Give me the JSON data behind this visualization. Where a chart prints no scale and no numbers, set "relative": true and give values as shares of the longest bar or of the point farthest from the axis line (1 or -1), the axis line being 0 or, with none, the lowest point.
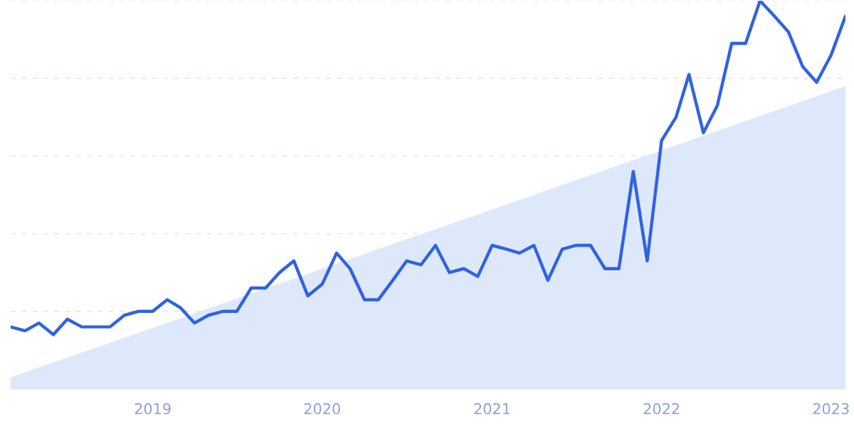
{
  "chart_data": {
    "type": "line",
    "relative": true,
    "grid": "y",
    "tick_labels": "x",
    "x": [
      "2018-03",
      "2018-04",
      "2018-05",
      "2018-06",
      "2018-07",
      "2018-08",
      "2018-09",
      "2018-10",
      "2018-11",
      "2018-12",
      "2019-01",
      "2019-02",
      "2019-03",
      "2019-04",
      "2019-05",
      "2019-06",
      "2019-07",
      "2019-08",
      "2019-09",
      "2019-10",
      "2019-11",
      "2019-12",
      "2020-01",
      "2020-02",
      "2020-03",
      "2020-04",
      "2020-05",
      "2020-06",
      "2020-07",
      "2020-08",
      "2020-09",
      "2020-10",
      "2020-11",
      "2020-12",
      "2021-01",
      "2021-02",
      "2021-03",
      "2021-04",
      "2021-05",
      "2021-06",
      "2021-07",
      "2021-08",
      "2021-09",
      "2021-10",
      "2021-11",
      "2021-12",
      "2022-01",
      "2022-02",
      "2022-03",
      "2022-04",
      "2022-05",
      "2022-06",
      "2022-07",
      "2022-08",
      "2022-09",
      "2022-10",
      "2022-11",
      "2022-12",
      "2023-01",
      "2023-02"
    ],
    "xlim": [
      "2018-03",
      "2023-02"
    ],
    "xticks": [
      {
        "value": "2019-01",
        "label": "2019"
      },
      {
        "value": "2020-01",
        "label": "2020"
      },
      {
        "value": "2021-01",
        "label": "2021"
      },
      {
        "value": "2022-01",
        "label": "2022"
      },
      {
        "value": "2023-01",
        "label": "2023"
      }
    ],
    "series": [
      {
        "type": "area",
        "color": "#dde9fb",
        "x": [
          "2018-03",
          "2023-02"
        ],
        "values": [
          0.03,
          0.78
        ]
      },
      {
        "color": "#3162e2",
        "values": [
          0.16,
          0.15,
          0.17,
          0.14,
          0.18,
          0.16,
          0.16,
          0.16,
          0.19,
          0.2,
          0.2,
          0.23,
          0.21,
          0.17,
          0.19,
          0.2,
          0.2,
          0.26,
          0.26,
          0.3,
          0.33,
          0.24,
          0.27,
          0.35,
          0.31,
          0.23,
          0.23,
          0.28,
          0.33,
          0.32,
          0.37,
          0.3,
          0.31,
          0.29,
          0.37,
          0.36,
          0.35,
          0.37,
          0.28,
          0.36,
          0.37,
          0.37,
          0.31,
          0.31,
          0.56,
          0.33,
          0.64,
          0.7,
          0.81,
          0.66,
          0.73,
          0.89,
          0.89,
          1.0,
          0.96,
          0.92,
          0.83,
          0.79,
          0.86,
          0.96
        ]
      }
    ]
  }
}
